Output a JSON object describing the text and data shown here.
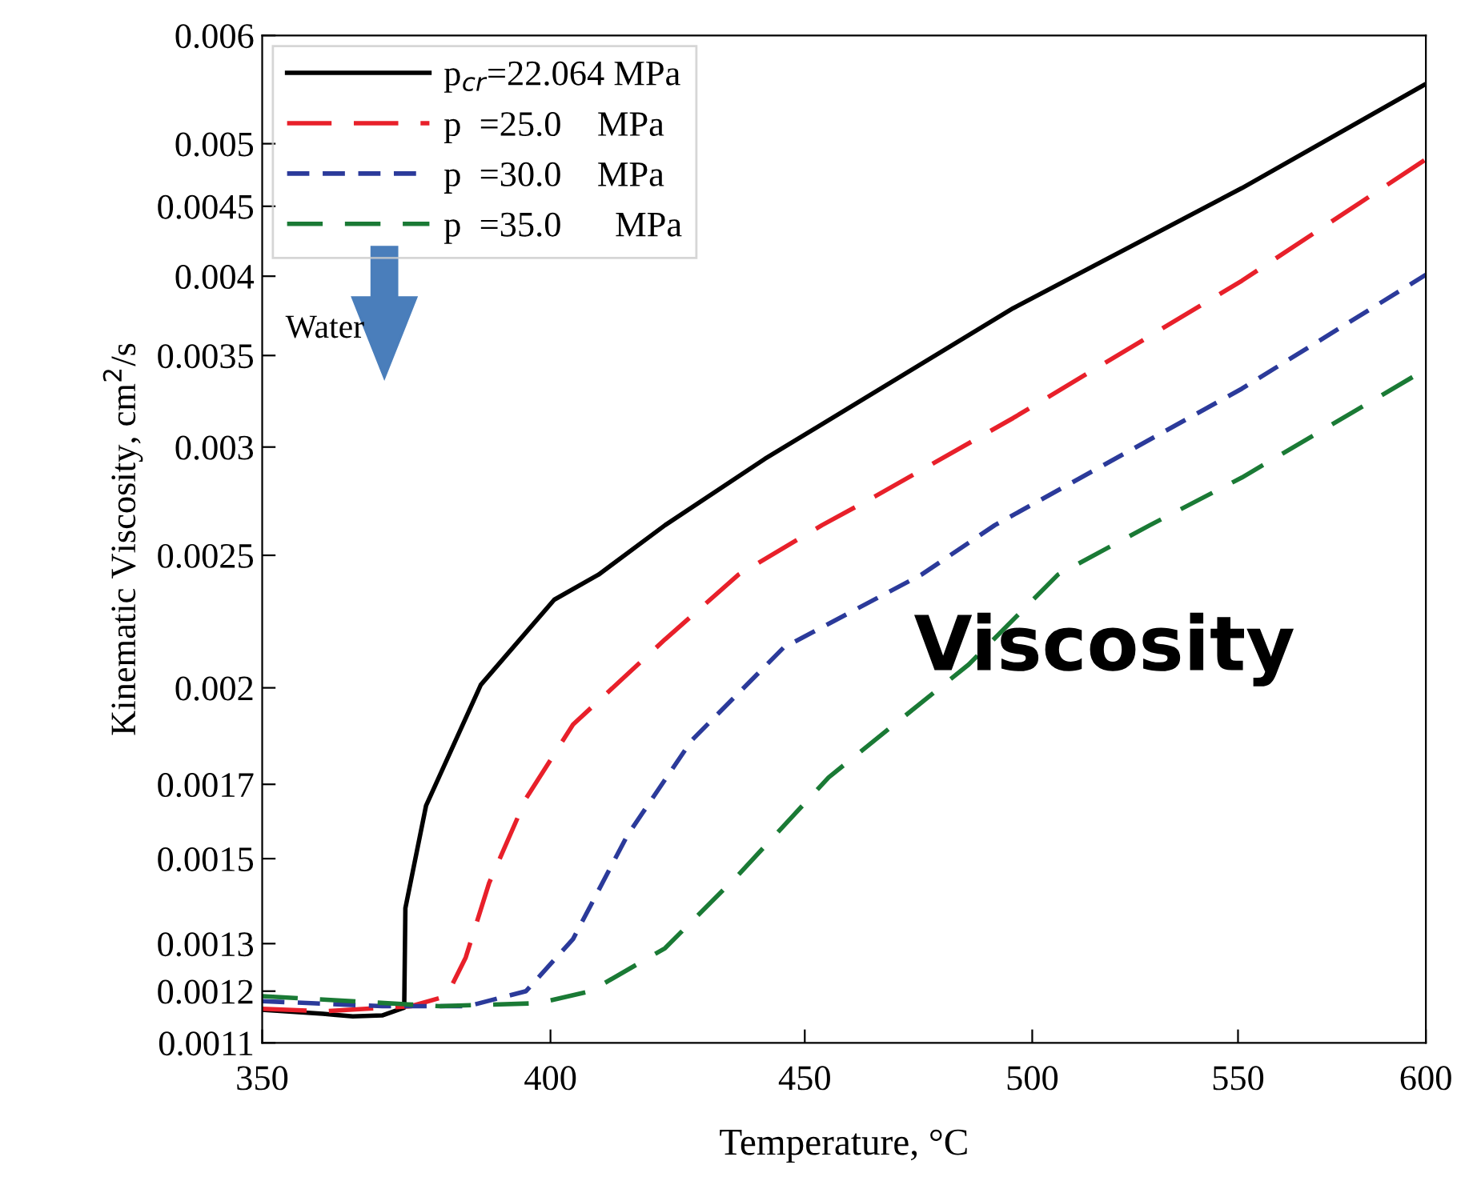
{
  "chart_data": {
    "type": "line",
    "xlabel": "Temperature, °C",
    "ylabel": "Kinematic Viscosity, cm$^{2}$/s",
    "log": "xy",
    "xlim": [
      350,
      600
    ],
    "xticks": [
      350,
      400,
      450,
      500,
      550,
      600
    ],
    "ylim": [
      0.0011,
      0.006
    ],
    "yticks": [
      0.0011,
      0.0012,
      0.0013,
      0.0015,
      0.0017,
      0.002,
      0.0025,
      0.003,
      0.0035,
      0.004,
      0.0045,
      0.005,
      0.006
    ],
    "grid": false,
    "legend": "top left",
    "annotations": [
      "Water",
      "Viscosity"
    ],
    "series": [
      {
        "name": "p$_{cr}$=22.064 MPa",
        "color": "#000000",
        "line_style": "solid",
        "x": [
          350,
          360,
          365,
          370,
          373.8,
          374,
          377.6,
          387.3,
          400.7,
          409,
          421.8,
          441.7,
          495.6,
          551,
          600
        ],
        "values": [
          0.001163,
          0.001155,
          0.00115,
          0.001152,
          0.001167,
          0.00138,
          0.00164,
          0.00201,
          0.00232,
          0.00242,
          0.00263,
          0.00294,
          0.00379,
          0.00464,
          0.00553
        ]
      },
      {
        "name": "p  =25.0    MPa",
        "color": "#e8202a",
        "line_style": "dashed",
        "x": [
          350,
          360,
          375,
          381.2,
          384.6,
          388.8,
          395.5,
          404.2,
          421.8,
          436.4,
          453.6,
          464.8,
          495.6,
          551,
          600
        ],
        "values": [
          0.001165,
          0.00116,
          0.00117,
          0.00119,
          0.00127,
          0.00144,
          0.00166,
          0.00188,
          0.00217,
          0.00242,
          0.00263,
          0.00276,
          0.00315,
          0.00397,
          0.00487
        ]
      },
      {
        "name": "p  =30.0    MPa",
        "color": "#2b3a9a",
        "line_style": "dashed",
        "x": [
          350,
          370,
          385,
          395.5,
          404.2,
          414.5,
          427,
          445.6,
          475,
          491.4,
          551,
          600
        ],
        "values": [
          0.00118,
          0.00117,
          0.00117,
          0.0012,
          0.00131,
          0.00156,
          0.00183,
          0.00214,
          0.00242,
          0.00263,
          0.00331,
          0.00401
        ]
      },
      {
        "name": "p  =35.0      MPa",
        "color": "#1a7a35",
        "line_style": "dashed",
        "x": [
          350,
          380,
          397.8,
          407.5,
          421.8,
          436.4,
          455,
          485.5,
          506,
          528,
          551,
          600
        ],
        "values": [
          0.00119,
          0.00117,
          0.001176,
          0.0012,
          0.00129,
          0.00146,
          0.00172,
          0.00208,
          0.00242,
          0.00263,
          0.00285,
          0.00342
        ]
      }
    ]
  }
}
